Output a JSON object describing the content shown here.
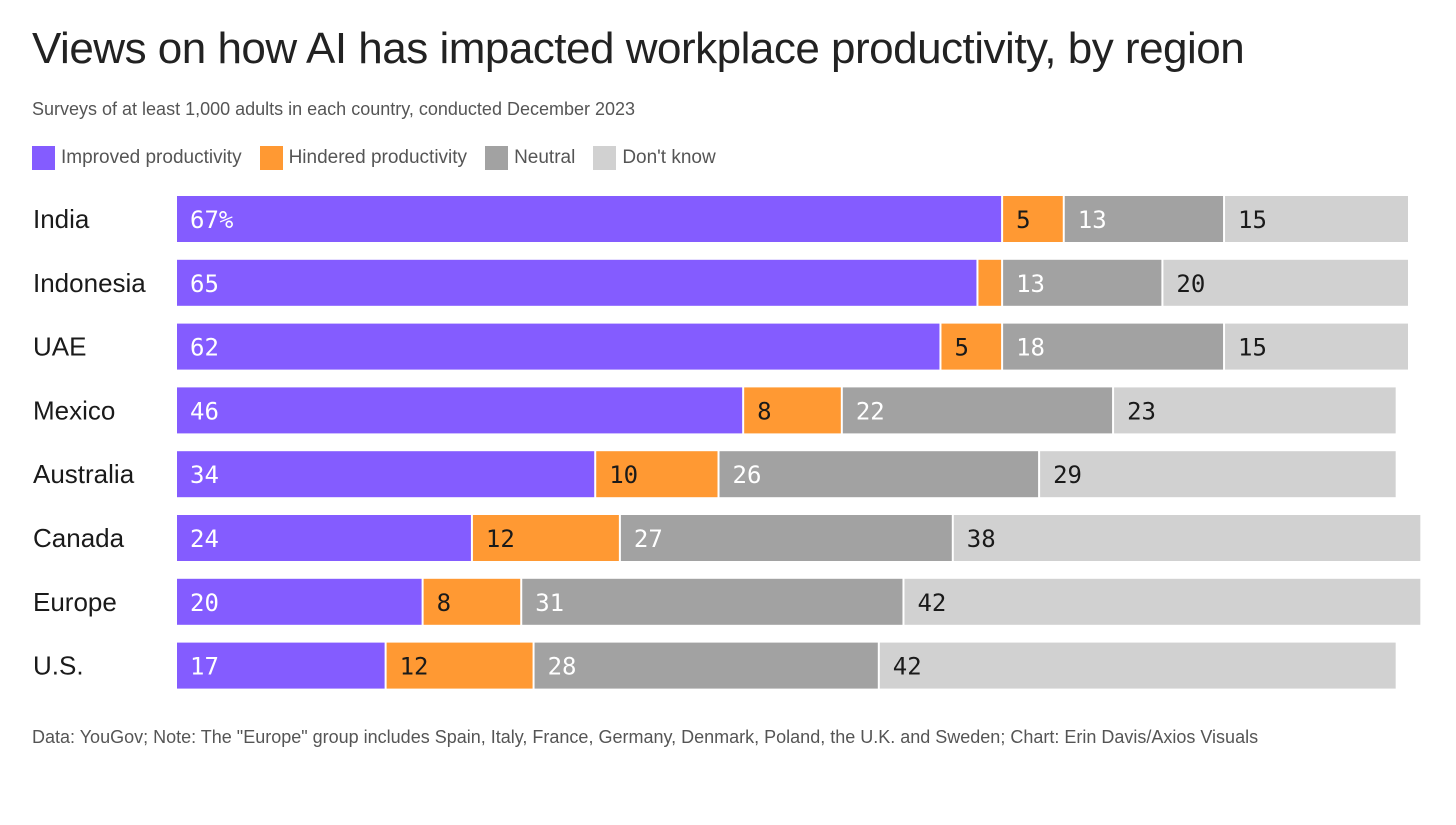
{
  "chart_data": {
    "type": "bar",
    "orientation": "horizontal-stacked",
    "title": "Views on how AI has impacted workplace productivity, by region",
    "subtitle": "Surveys of at least 1,000 adults in each country, conducted December 2023",
    "unit": "%",
    "legend_position": "top-left",
    "series": [
      {
        "name": "Improved productivity",
        "color": "#845cff",
        "text_color": "#ffffff"
      },
      {
        "name": "Hindered productivity",
        "color": "#ff9933",
        "text_color": "#1a1a1a"
      },
      {
        "name": "Neutral",
        "color": "#a2a2a2",
        "text_color": "#ffffff"
      },
      {
        "name": "Don't know",
        "color": "#d1d1d1",
        "text_color": "#1a1a1a"
      }
    ],
    "categories": [
      "India",
      "Indonesia",
      "UAE",
      "Mexico",
      "Australia",
      "Canada",
      "Europe",
      "U.S."
    ],
    "values": [
      [
        67,
        5,
        13,
        15
      ],
      [
        65,
        2,
        13,
        20
      ],
      [
        62,
        5,
        18,
        15
      ],
      [
        46,
        8,
        22,
        23
      ],
      [
        34,
        10,
        26,
        29
      ],
      [
        24,
        12,
        27,
        38
      ],
      [
        20,
        8,
        31,
        42
      ],
      [
        17,
        12,
        28,
        42
      ]
    ],
    "labels": [
      [
        "67%",
        "5",
        "13",
        "15"
      ],
      [
        "65",
        "",
        "13",
        "20"
      ],
      [
        "62",
        "5",
        "18",
        "15"
      ],
      [
        "46",
        "8",
        "22",
        "23"
      ],
      [
        "34",
        "10",
        "26",
        "29"
      ],
      [
        "24",
        "12",
        "27",
        "38"
      ],
      [
        "20",
        "8",
        "31",
        "42"
      ],
      [
        "17",
        "12",
        "28",
        "42"
      ]
    ],
    "xlim": [
      0,
      100
    ],
    "grid": false
  },
  "footer": "Data: YouGov; Note: The \"Europe\" group includes Spain, Italy, France, Germany, Denmark, Poland, the U.K. and Sweden; Chart: Erin Davis/Axios Visuals"
}
